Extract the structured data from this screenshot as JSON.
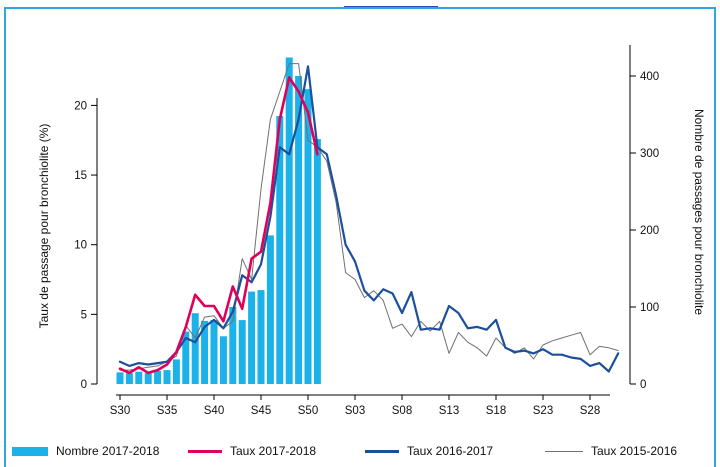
{
  "chart_data": {
    "type": "bar+line",
    "x_tick_labels": [
      "S30",
      "S35",
      "S40",
      "S45",
      "S50",
      "S03",
      "S08",
      "S13",
      "S18",
      "S23",
      "S28"
    ],
    "y_left": {
      "label": "Taux de passage pour bronchiolite (%)",
      "ticks": [
        "0",
        "5",
        "10",
        "15",
        "20"
      ],
      "range": [
        0,
        23
      ]
    },
    "y_right": {
      "label": "Nombre de passages pour bronchiolite",
      "ticks": [
        "0",
        "100",
        "200",
        "300",
        "400"
      ],
      "range": [
        0,
        442
      ]
    },
    "bars": {
      "name": "Nombre 2017-2018",
      "color": "#1ab2e8",
      "values": [
        15,
        14,
        16,
        14,
        17,
        18,
        32,
        68,
        92,
        82,
        83,
        62,
        100,
        83,
        120,
        122,
        193,
        348,
        424,
        400,
        383,
        318
      ]
    },
    "series": [
      {
        "name": "Taux 2017-2018",
        "color": "#e0005a",
        "axis": "left",
        "values": [
          1.1,
          0.8,
          1.2,
          0.8,
          1.0,
          1.4,
          2.3,
          4.1,
          6.4,
          5.6,
          5.6,
          4.5,
          7.0,
          5.4,
          9.0,
          9.5,
          13.0,
          19.0,
          22.0,
          21.0,
          19.5,
          16.5
        ]
      },
      {
        "name": "Taux 2016-2017",
        "color": "#1c4f9c",
        "axis": "left",
        "values": [
          1.6,
          1.3,
          1.5,
          1.4,
          1.5,
          1.6,
          2.3,
          3.3,
          3.0,
          4.1,
          4.6,
          4.0,
          5.2,
          7.8,
          7.3,
          8.6,
          12.0,
          17.0,
          16.5,
          19.0,
          22.8,
          17.0,
          16.5,
          13.5,
          10.0,
          8.8,
          6.7,
          6.0,
          6.8,
          6.5,
          5.1,
          6.6,
          3.9,
          4.0,
          3.9,
          5.6,
          5.1,
          4.0,
          4.1,
          3.9,
          4.6,
          2.6,
          2.3,
          2.4,
          2.2,
          2.5,
          2.1,
          2.1,
          1.9,
          1.8,
          1.3,
          1.5,
          0.9,
          2.2
        ]
      },
      {
        "name": "Taux 2015-2016",
        "color": "#707070",
        "axis": "left",
        "values": [
          1.0,
          1.0,
          1.1,
          1.2,
          1.3,
          1.6,
          2.0,
          4.2,
          3.3,
          4.8,
          4.9,
          4.0,
          4.5,
          9.0,
          7.5,
          14.0,
          19.0,
          21.0,
          23.0,
          23.0,
          17.5,
          17.0,
          16.0,
          13.0,
          8.0,
          7.5,
          6.2,
          6.7,
          6.0,
          4.0,
          4.3,
          3.4,
          4.5,
          3.8,
          4.5,
          2.2,
          3.7,
          3.0,
          2.6,
          2.0,
          3.3,
          2.6,
          2.2,
          2.6,
          1.8,
          2.8,
          3.1,
          3.3,
          3.5,
          3.7,
          2.1,
          2.7,
          2.6,
          2.4
        ]
      }
    ],
    "legend_position": "bottom",
    "grid": false
  },
  "legend": [
    {
      "label": "Nombre 2017-2018"
    },
    {
      "label": "Taux 2017-2018"
    },
    {
      "label": "Taux 2016-2017"
    },
    {
      "label": "Taux 2015-2016"
    }
  ]
}
